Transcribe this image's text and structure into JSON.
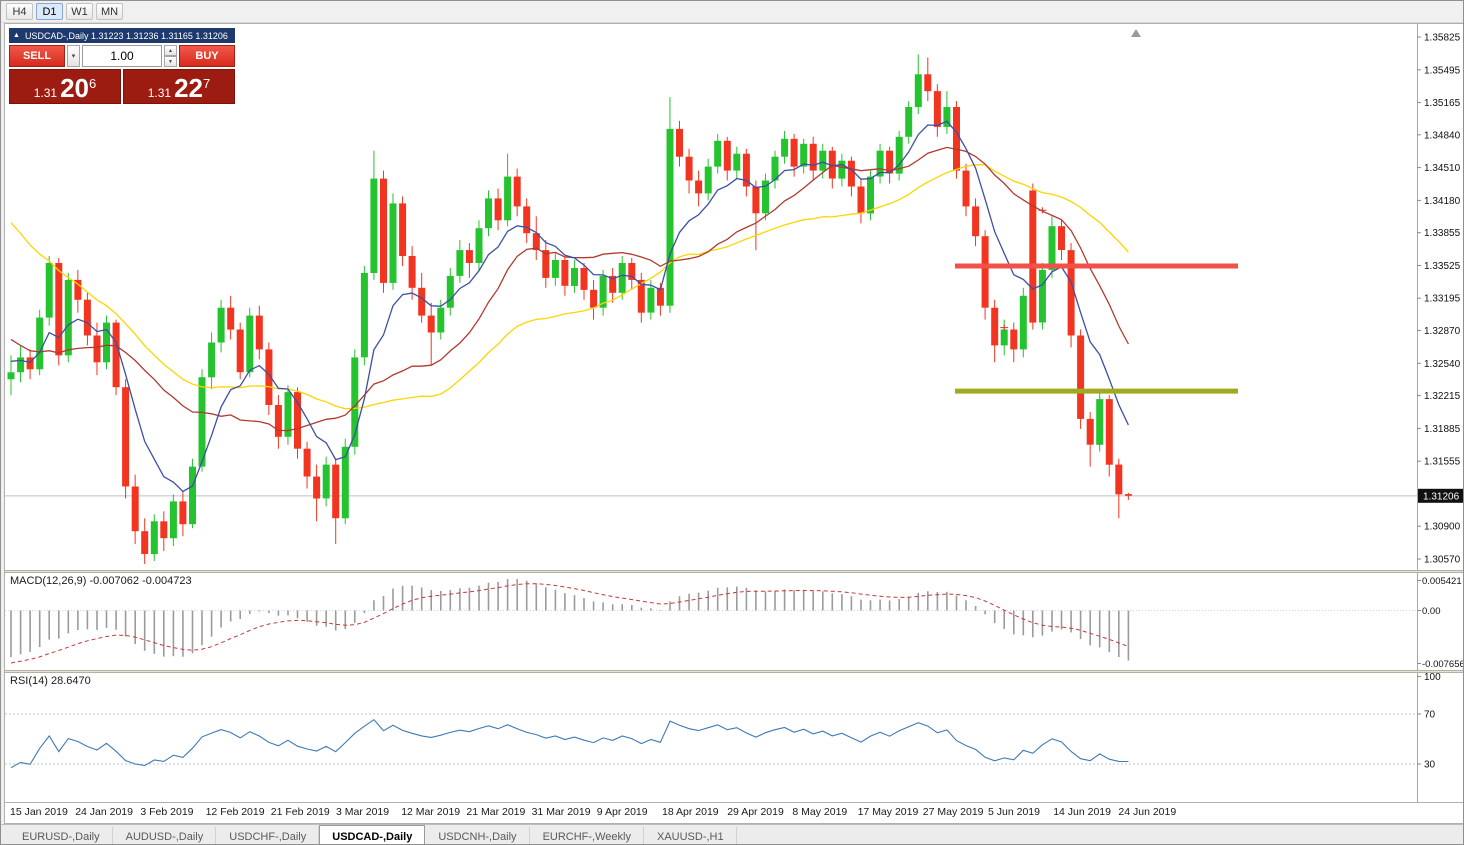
{
  "toolbar": {
    "timeframes": [
      {
        "label": "H4",
        "active": false
      },
      {
        "label": "D1",
        "active": true
      },
      {
        "label": "W1",
        "active": false
      },
      {
        "label": "MN",
        "active": false
      }
    ]
  },
  "icons": {
    "collapse": "▲",
    "dropdown": "▾",
    "spin_up": "▲",
    "spin_down": "▼"
  },
  "trade_panel": {
    "header": "USDCAD-,Daily 1.31223 1.31236 1.31165 1.31206",
    "sell_label": "SELL",
    "buy_label": "BUY",
    "volume": "1.00",
    "bid": {
      "base": "1.31",
      "pips": "20",
      "point": "6"
    },
    "ask": {
      "base": "1.31",
      "pips": "22",
      "point": "7"
    }
  },
  "main_chart": {
    "price_axis": [
      "1.35825",
      "1.35495",
      "1.35165",
      "1.34840",
      "1.34510",
      "1.34180",
      "1.33855",
      "1.33525",
      "1.33195",
      "1.32870",
      "1.32540",
      "1.32215",
      "1.31885",
      "1.31555",
      "1.31225",
      "1.30900",
      "1.30570"
    ],
    "current_price": "1.31206",
    "current_price_value": 1.31206,
    "colors": {
      "up": "#25c32f",
      "down": "#f23520",
      "bid_line": "#c0c0c0",
      "axis_line": "#a8a8a8"
    },
    "objects": {
      "resistance_line": {
        "price": 1.3352,
        "x1": 0.673,
        "x2": 0.873,
        "color": "#f25048"
      },
      "support_line": {
        "price": 1.3226,
        "x1": 0.673,
        "x2": 0.873,
        "color": "#a0aa1e"
      }
    },
    "trade_marks": [
      {
        "index": 104,
        "price": 1.329
      },
      {
        "index": 108,
        "price": 1.3408
      }
    ],
    "ma": [
      {
        "name": "ma-slow",
        "type": "sma",
        "period": 34,
        "color": "#ffd400"
      },
      {
        "name": "ma-mid",
        "type": "sma",
        "period": 18,
        "color": "#b03a30"
      },
      {
        "name": "ma-fast",
        "type": "ema",
        "period": 8,
        "color": "#3c4fa6"
      }
    ],
    "pre_closes": [
      1.3655,
      1.363,
      1.3645,
      1.361,
      1.3585,
      1.36,
      1.357,
      1.3545,
      1.3555,
      1.352,
      1.3495,
      1.3505,
      1.347,
      1.3445,
      1.3455,
      1.342,
      1.3395,
      1.337,
      1.3345,
      1.332,
      1.3332,
      1.3305,
      1.328,
      1.3292,
      1.3268,
      1.3248,
      1.326,
      1.3238,
      1.3252,
      1.323,
      1.3242,
      1.3258,
      1.327,
      1.325
    ],
    "candles": [
      [
        1.3238,
        1.3262,
        1.3222,
        1.3245
      ],
      [
        1.3245,
        1.3272,
        1.3235,
        1.326
      ],
      [
        1.326,
        1.3268,
        1.3238,
        1.3248
      ],
      [
        1.3248,
        1.3308,
        1.3242,
        1.33
      ],
      [
        1.33,
        1.3362,
        1.3292,
        1.3355
      ],
      [
        1.3355,
        1.336,
        1.3252,
        1.3262
      ],
      [
        1.3262,
        1.3345,
        1.3255,
        1.3338
      ],
      [
        1.3338,
        1.3348,
        1.3305,
        1.3318
      ],
      [
        1.3318,
        1.3325,
        1.3272,
        1.3282
      ],
      [
        1.3282,
        1.3295,
        1.3242,
        1.3255
      ],
      [
        1.3255,
        1.3302,
        1.3248,
        1.3295
      ],
      [
        1.3295,
        1.3298,
        1.3222,
        1.323
      ],
      [
        1.323,
        1.3238,
        1.3118,
        1.313
      ],
      [
        1.313,
        1.3142,
        1.3072,
        1.3085
      ],
      [
        1.3085,
        1.3098,
        1.3052,
        1.3062
      ],
      [
        1.3062,
        1.3102,
        1.3055,
        1.3095
      ],
      [
        1.3095,
        1.3105,
        1.3065,
        1.3078
      ],
      [
        1.3078,
        1.3122,
        1.307,
        1.3115
      ],
      [
        1.3115,
        1.3125,
        1.308,
        1.3092
      ],
      [
        1.3092,
        1.3158,
        1.3088,
        1.315
      ],
      [
        1.315,
        1.3248,
        1.3145,
        1.324
      ],
      [
        1.324,
        1.3285,
        1.3228,
        1.3275
      ],
      [
        1.3275,
        1.3318,
        1.3265,
        1.331
      ],
      [
        1.331,
        1.3322,
        1.3278,
        1.3288
      ],
      [
        1.3288,
        1.3295,
        1.3238,
        1.3245
      ],
      [
        1.3245,
        1.331,
        1.324,
        1.3302
      ],
      [
        1.3302,
        1.3312,
        1.3258,
        1.3268
      ],
      [
        1.3268,
        1.3275,
        1.3202,
        1.3212
      ],
      [
        1.3212,
        1.3222,
        1.3168,
        1.318
      ],
      [
        1.318,
        1.3232,
        1.3172,
        1.3225
      ],
      [
        1.3225,
        1.323,
        1.3158,
        1.3168
      ],
      [
        1.3168,
        1.3175,
        1.3128,
        1.314
      ],
      [
        1.314,
        1.3152,
        1.3095,
        1.3118
      ],
      [
        1.3118,
        1.316,
        1.311,
        1.3152
      ],
      [
        1.3152,
        1.3158,
        1.3072,
        1.3098
      ],
      [
        1.3098,
        1.3178,
        1.3092,
        1.317
      ],
      [
        1.317,
        1.3268,
        1.3162,
        1.326
      ],
      [
        1.326,
        1.3352,
        1.3252,
        1.3345
      ],
      [
        1.3345,
        1.3468,
        1.3338,
        1.344
      ],
      [
        1.344,
        1.3448,
        1.3325,
        1.3335
      ],
      [
        1.3335,
        1.3425,
        1.3328,
        1.3415
      ],
      [
        1.3415,
        1.3422,
        1.3352,
        1.3362
      ],
      [
        1.3362,
        1.3372,
        1.3318,
        1.333
      ],
      [
        1.333,
        1.3345,
        1.3295,
        1.3302
      ],
      [
        1.3302,
        1.3315,
        1.3252,
        1.3285
      ],
      [
        1.3285,
        1.3318,
        1.3278,
        1.331
      ],
      [
        1.331,
        1.335,
        1.3302,
        1.3342
      ],
      [
        1.3342,
        1.3378,
        1.3335,
        1.3368
      ],
      [
        1.3368,
        1.3375,
        1.334,
        1.3355
      ],
      [
        1.3355,
        1.3398,
        1.3348,
        1.339
      ],
      [
        1.339,
        1.3428,
        1.3382,
        1.342
      ],
      [
        1.342,
        1.343,
        1.3388,
        1.3398
      ],
      [
        1.3398,
        1.3465,
        1.3392,
        1.3442
      ],
      [
        1.3442,
        1.345,
        1.3402,
        1.3412
      ],
      [
        1.3412,
        1.342,
        1.3375,
        1.3385
      ],
      [
        1.3385,
        1.3402,
        1.3358,
        1.3368
      ],
      [
        1.3368,
        1.3378,
        1.333,
        1.334
      ],
      [
        1.334,
        1.3365,
        1.3332,
        1.3358
      ],
      [
        1.3358,
        1.3362,
        1.3322,
        1.3332
      ],
      [
        1.3332,
        1.3358,
        1.3325,
        1.335
      ],
      [
        1.335,
        1.3355,
        1.3318,
        1.3328
      ],
      [
        1.3328,
        1.3338,
        1.3298,
        1.331
      ],
      [
        1.331,
        1.3348,
        1.3302,
        1.3342
      ],
      [
        1.3342,
        1.335,
        1.3315,
        1.3325
      ],
      [
        1.3325,
        1.3362,
        1.3318,
        1.3355
      ],
      [
        1.3355,
        1.336,
        1.3328,
        1.3338
      ],
      [
        1.3338,
        1.3345,
        1.3295,
        1.3305
      ],
      [
        1.3305,
        1.3338,
        1.3298,
        1.333
      ],
      [
        1.333,
        1.3335,
        1.3302,
        1.3312
      ],
      [
        1.3312,
        1.3522,
        1.3305,
        1.349
      ],
      [
        1.349,
        1.3498,
        1.3452,
        1.3462
      ],
      [
        1.3462,
        1.347,
        1.3425,
        1.3438
      ],
      [
        1.3438,
        1.3448,
        1.3412,
        1.3425
      ],
      [
        1.3425,
        1.346,
        1.3418,
        1.3452
      ],
      [
        1.3452,
        1.3485,
        1.3445,
        1.3478
      ],
      [
        1.3478,
        1.3482,
        1.3438,
        1.3448
      ],
      [
        1.3448,
        1.3472,
        1.344,
        1.3465
      ],
      [
        1.3465,
        1.347,
        1.3422,
        1.3432
      ],
      [
        1.3432,
        1.3438,
        1.3368,
        1.3405
      ],
      [
        1.3405,
        1.3445,
        1.3398,
        1.3438
      ],
      [
        1.3438,
        1.3468,
        1.343,
        1.3462
      ],
      [
        1.3462,
        1.3488,
        1.3455,
        1.348
      ],
      [
        1.348,
        1.3485,
        1.3442,
        1.3452
      ],
      [
        1.3452,
        1.348,
        1.3445,
        1.3475
      ],
      [
        1.3475,
        1.3482,
        1.3438,
        1.3448
      ],
      [
        1.3448,
        1.3475,
        1.344,
        1.3468
      ],
      [
        1.3468,
        1.3472,
        1.343,
        1.344
      ],
      [
        1.344,
        1.3465,
        1.3432,
        1.3458
      ],
      [
        1.3458,
        1.3462,
        1.3422,
        1.3432
      ],
      [
        1.3432,
        1.344,
        1.3395,
        1.3405
      ],
      [
        1.3405,
        1.3448,
        1.3398,
        1.3442
      ],
      [
        1.3442,
        1.3475,
        1.3435,
        1.3468
      ],
      [
        1.3468,
        1.3472,
        1.3435,
        1.3445
      ],
      [
        1.3445,
        1.3488,
        1.3438,
        1.3482
      ],
      [
        1.3482,
        1.3518,
        1.3475,
        1.3512
      ],
      [
        1.3512,
        1.3565,
        1.3505,
        1.3545
      ],
      [
        1.3545,
        1.3562,
        1.3518,
        1.3528
      ],
      [
        1.3528,
        1.3535,
        1.3482,
        1.3492
      ],
      [
        1.3492,
        1.3528,
        1.3485,
        1.3512
      ],
      [
        1.3512,
        1.3518,
        1.344,
        1.3448
      ],
      [
        1.3448,
        1.3455,
        1.3402,
        1.3412
      ],
      [
        1.3412,
        1.342,
        1.3372,
        1.3382
      ],
      [
        1.3382,
        1.3388,
        1.3298,
        1.331
      ],
      [
        1.331,
        1.3318,
        1.3255,
        1.3272
      ],
      [
        1.3272,
        1.3298,
        1.3262,
        1.3288
      ],
      [
        1.3288,
        1.3295,
        1.3255,
        1.3268
      ],
      [
        1.3268,
        1.333,
        1.326,
        1.3322
      ],
      [
        1.3428,
        1.3435,
        1.3288,
        1.3295
      ],
      [
        1.3295,
        1.3355,
        1.3288,
        1.3348
      ],
      [
        1.3348,
        1.3402,
        1.334,
        1.3392
      ],
      [
        1.3392,
        1.3398,
        1.3358,
        1.3368
      ],
      [
        1.3368,
        1.3375,
        1.327,
        1.3282
      ],
      [
        1.3282,
        1.3288,
        1.3188,
        1.3198
      ],
      [
        1.3198,
        1.3205,
        1.315,
        1.3172
      ],
      [
        1.3172,
        1.3225,
        1.3165,
        1.3218
      ],
      [
        1.3218,
        1.3222,
        1.314,
        1.3152
      ],
      [
        1.3152,
        1.3158,
        1.3098,
        1.3122
      ],
      [
        1.31223,
        1.31236,
        1.31165,
        1.31206
      ]
    ]
  },
  "macd": {
    "label": "MACD(12,26,9) -0.007062 -0.004723",
    "fast": 12,
    "slow": 26,
    "signal_period": 9,
    "axis": [
      "0.005421",
      "0.00",
      "-0.007656"
    ],
    "colors": {
      "histogram": "#9b9b9b",
      "signal": "#c23a3a"
    }
  },
  "rsi": {
    "label": "RSI(14) 28.6470",
    "period": 14,
    "levels": [
      70,
      30
    ],
    "axis": [
      "100",
      "70",
      "30"
    ],
    "colors": {
      "line": "#3e7ab5",
      "level": "#c6c6c6"
    }
  },
  "date_axis": [
    "15 Jan 2019",
    "24 Jan 2019",
    "3 Feb 2019",
    "12 Feb 2019",
    "21 Feb 2019",
    "3 Mar 2019",
    "12 Mar 2019",
    "21 Mar 2019",
    "31 Mar 2019",
    "9 Apr 2019",
    "18 Apr 2019",
    "29 Apr 2019",
    "8 May 2019",
    "17 May 2019",
    "27 May 2019",
    "5 Jun 2019",
    "14 Jun 2019",
    "24 Jun 2019"
  ],
  "tabs": [
    {
      "label": "EURUSD-,Daily",
      "active": false
    },
    {
      "label": "AUDUSD-,Daily",
      "active": false
    },
    {
      "label": "USDCHF-,Daily",
      "active": false
    },
    {
      "label": "USDCAD-,Daily",
      "active": true
    },
    {
      "label": "USDCNH-,Daily",
      "active": false
    },
    {
      "label": "EURCHF-,Weekly",
      "active": false
    },
    {
      "label": "XAUUSD-,H1",
      "active": false
    }
  ]
}
